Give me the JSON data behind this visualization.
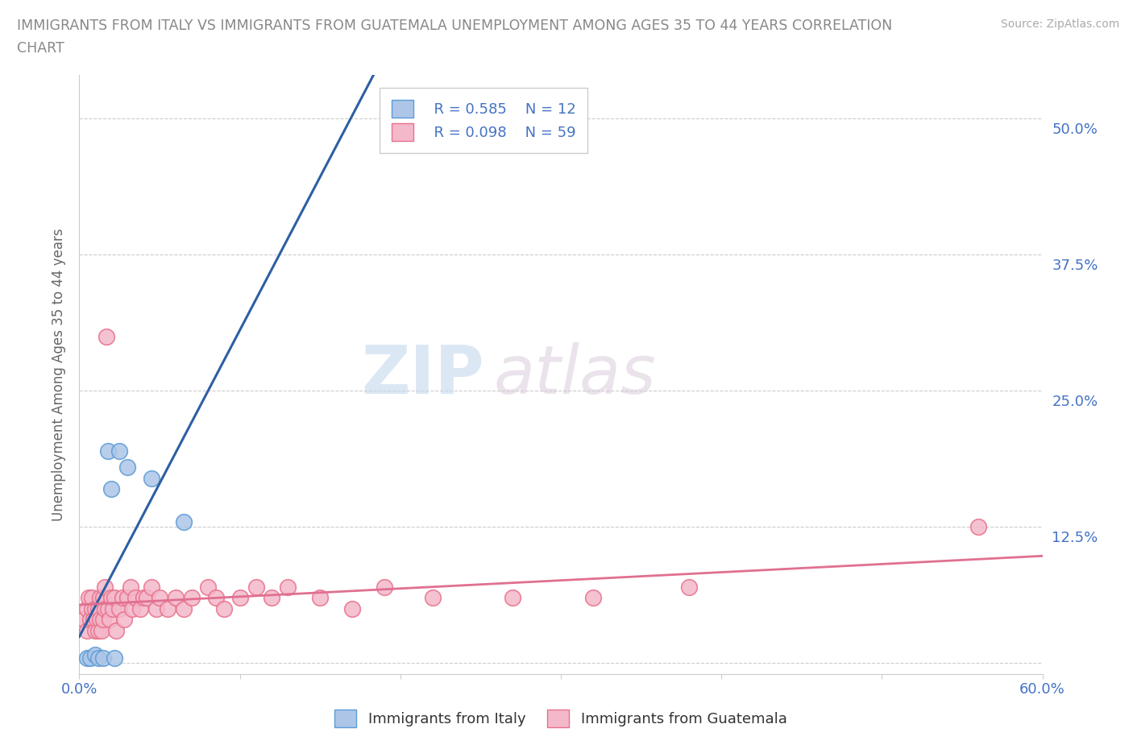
{
  "title_line1": "IMMIGRANTS FROM ITALY VS IMMIGRANTS FROM GUATEMALA UNEMPLOYMENT AMONG AGES 35 TO 44 YEARS CORRELATION",
  "title_line2": "CHART",
  "source_text": "Source: ZipAtlas.com",
  "ylabel": "Unemployment Among Ages 35 to 44 years",
  "xlim": [
    0.0,
    0.6
  ],
  "ylim": [
    -0.01,
    0.54
  ],
  "xticks": [
    0.0,
    0.1,
    0.2,
    0.3,
    0.4,
    0.5,
    0.6
  ],
  "yticks": [
    0.0,
    0.125,
    0.25,
    0.375,
    0.5
  ],
  "watermark_zip": "ZIP",
  "watermark_atlas": "atlas",
  "italy_color": "#adc6e8",
  "italy_edge_color": "#5b9bd5",
  "guatemala_color": "#f4b8cb",
  "guatemala_edge_color": "#e8708a",
  "italy_line_color": "#2e5fa3",
  "italy_line_dashed_color": "#a0b8d8",
  "guatemala_line_color": "#e07090",
  "legend_italy_r": "R = 0.585",
  "legend_italy_n": "N = 12",
  "legend_guatemala_r": "R = 0.098",
  "legend_guatemala_n": "N = 59",
  "italy_x": [
    0.005,
    0.007,
    0.01,
    0.012,
    0.015,
    0.018,
    0.02,
    0.022,
    0.025,
    0.03,
    0.045,
    0.065
  ],
  "italy_y": [
    0.005,
    0.005,
    0.008,
    0.005,
    0.005,
    0.195,
    0.16,
    0.005,
    0.195,
    0.18,
    0.17,
    0.13
  ],
  "guatemala_x": [
    0.003,
    0.005,
    0.005,
    0.006,
    0.007,
    0.008,
    0.008,
    0.009,
    0.01,
    0.01,
    0.011,
    0.012,
    0.012,
    0.013,
    0.013,
    0.014,
    0.015,
    0.015,
    0.016,
    0.016,
    0.017,
    0.018,
    0.019,
    0.02,
    0.021,
    0.022,
    0.023,
    0.025,
    0.027,
    0.028,
    0.03,
    0.032,
    0.033,
    0.035,
    0.038,
    0.04,
    0.042,
    0.045,
    0.048,
    0.05,
    0.055,
    0.06,
    0.065,
    0.07,
    0.08,
    0.085,
    0.09,
    0.1,
    0.11,
    0.12,
    0.13,
    0.15,
    0.17,
    0.19,
    0.22,
    0.27,
    0.32,
    0.38,
    0.56
  ],
  "guatemala_y": [
    0.04,
    0.03,
    0.05,
    0.06,
    0.04,
    0.05,
    0.06,
    0.04,
    0.03,
    0.05,
    0.04,
    0.03,
    0.05,
    0.04,
    0.06,
    0.03,
    0.04,
    0.06,
    0.05,
    0.07,
    0.3,
    0.05,
    0.04,
    0.06,
    0.05,
    0.06,
    0.03,
    0.05,
    0.06,
    0.04,
    0.06,
    0.07,
    0.05,
    0.06,
    0.05,
    0.06,
    0.06,
    0.07,
    0.05,
    0.06,
    0.05,
    0.06,
    0.05,
    0.06,
    0.07,
    0.06,
    0.05,
    0.06,
    0.07,
    0.06,
    0.07,
    0.06,
    0.05,
    0.07,
    0.06,
    0.06,
    0.06,
    0.07,
    0.125
  ],
  "italy_scatter_size": 200,
  "guatemala_scatter_size": 200,
  "grid_color": "#cccccc",
  "axis_label_color": "#4472c4",
  "tick_label_color_right": "#4472c4",
  "title_color": "#888888",
  "background_color": "#ffffff"
}
